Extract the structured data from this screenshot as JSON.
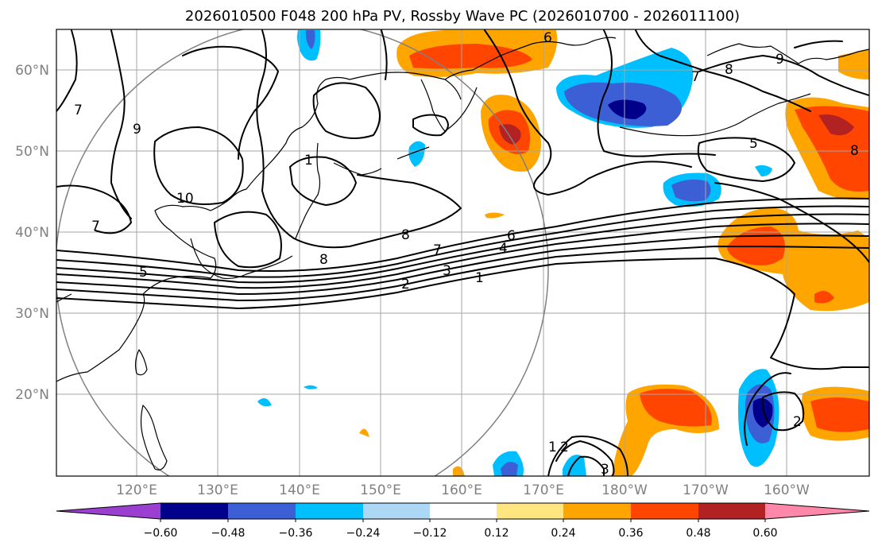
{
  "title": "2026010500 F048 200 hPa PV, Rossby Wave PC (2026010700 - 2026011100)",
  "lat_labels": [
    "60°N",
    "50°N",
    "40°N",
    "30°N",
    "20°N"
  ],
  "lon_labels": [
    "120°E",
    "130°E",
    "140°E",
    "150°E",
    "160°E",
    "170°E",
    "180°W",
    "170°W",
    "160°W"
  ],
  "colorbar": {
    "ticks": [
      "−0.60",
      "−0.48",
      "−0.36",
      "−0.24",
      "−0.12",
      "0.12",
      "0.24",
      "0.36",
      "0.48",
      "0.60"
    ],
    "colors": [
      "#9b3fd0",
      "#00008b",
      "#3d5fd6",
      "#00bfff",
      "#add8f5",
      "#ffffff",
      "#ffe680",
      "#ffa500",
      "#ff4500",
      "#b22222",
      "#ff88aa"
    ]
  },
  "contour_labels": [
    "6",
    "7",
    "8",
    "9",
    "5",
    "1",
    "2",
    "3",
    "4",
    "6",
    "7",
    "8",
    "8",
    "10",
    "7",
    "9",
    "7",
    "5",
    "1",
    "2",
    "3",
    "8",
    "2",
    "1"
  ],
  "map_extent": {
    "lon_min": 110,
    "lon_max": 210,
    "lat_min": 10,
    "lat_max": 65
  },
  "chart_data": {
    "type": "map",
    "variable": "200 hPa PV contours with Rossby Wave PC shading",
    "shading_levels": [
      -0.6,
      -0.48,
      -0.36,
      -0.24,
      -0.12,
      0.12,
      0.24,
      0.36,
      0.48,
      0.6
    ]
  }
}
